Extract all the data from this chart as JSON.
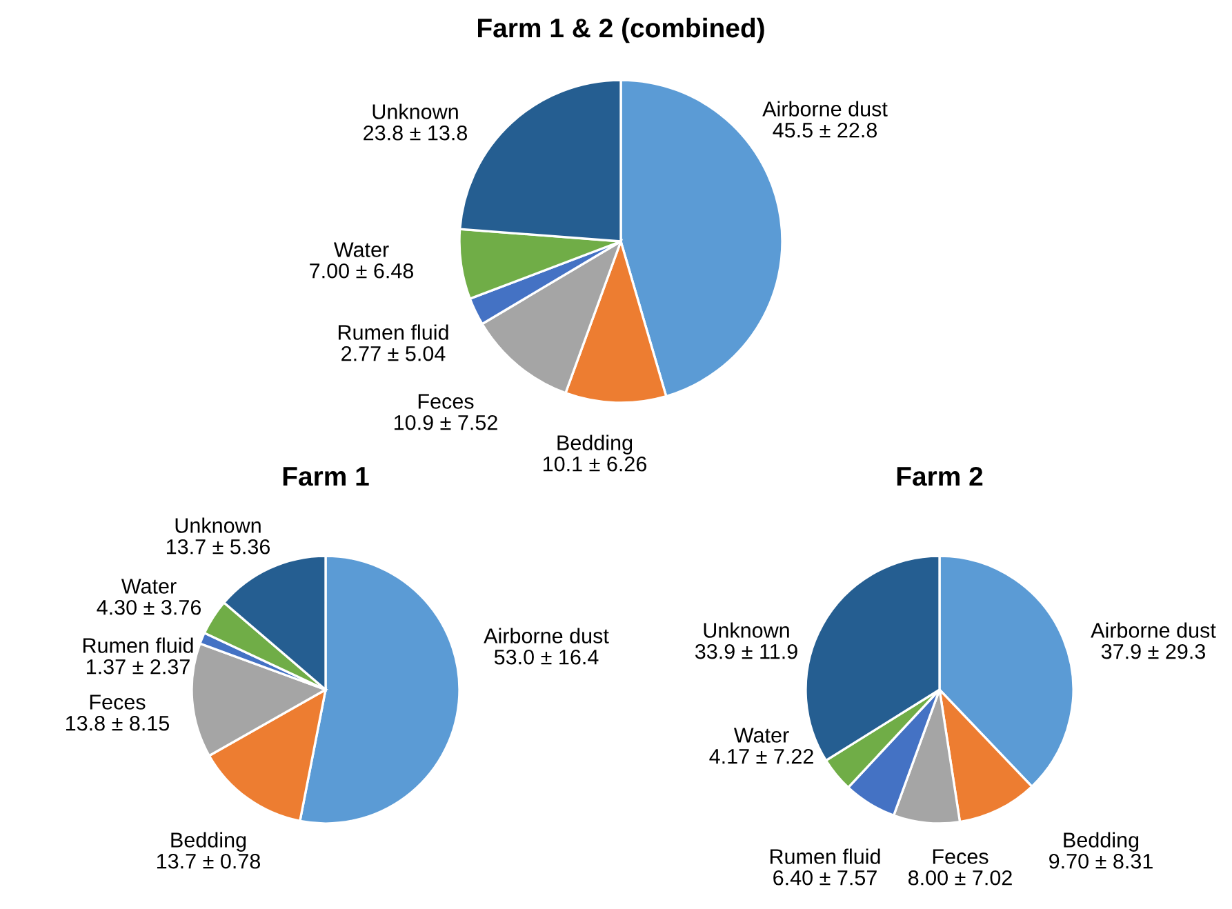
{
  "chart_data": [
    {
      "type": "pie",
      "title": "Farm 1 & 2 (combined)",
      "categories": [
        "Airborne dust",
        "Bedding",
        "Feces",
        "Rumen fluid",
        "Water",
        "Unknown"
      ],
      "values": [
        45.5,
        10.1,
        10.9,
        2.77,
        7.0,
        23.8
      ],
      "value_labels": [
        "45.5 ± 22.8",
        "10.1 ± 6.26",
        "10.9 ± 7.52",
        "2.77 ± 5.04",
        "7.00 ± 6.48",
        "23.8 ± 13.8"
      ],
      "colors": [
        "#5b9bd5",
        "#ed7d31",
        "#a5a5a5",
        "#4472c4",
        "#70ad47",
        "#255e91"
      ]
    },
    {
      "type": "pie",
      "title": "Farm 1",
      "categories": [
        "Airborne dust",
        "Bedding",
        "Feces",
        "Rumen fluid",
        "Water",
        "Unknown"
      ],
      "values": [
        53.0,
        13.7,
        13.8,
        1.37,
        4.3,
        13.7
      ],
      "value_labels": [
        "53.0 ± 16.4",
        "13.7 ± 0.78",
        "13.8 ± 8.15",
        "1.37 ± 2.37",
        "4.30 ± 3.76",
        "13.7 ± 5.36"
      ],
      "colors": [
        "#5b9bd5",
        "#ed7d31",
        "#a5a5a5",
        "#4472c4",
        "#70ad47",
        "#255e91"
      ]
    },
    {
      "type": "pie",
      "title": "Farm 2",
      "categories": [
        "Airborne dust",
        "Bedding",
        "Feces",
        "Rumen fluid",
        "Water",
        "Unknown"
      ],
      "values": [
        37.9,
        9.7,
        8.0,
        6.4,
        4.17,
        33.9
      ],
      "value_labels": [
        "37.9 ± 29.3",
        "9.70 ± 8.31",
        "8.00 ± 7.02",
        "6.40 ± 7.57",
        "4.17 ± 7.22",
        "33.9 ± 11.9"
      ],
      "colors": [
        "#5b9bd5",
        "#ed7d31",
        "#a5a5a5",
        "#4472c4",
        "#70ad47",
        "#255e91"
      ]
    }
  ]
}
